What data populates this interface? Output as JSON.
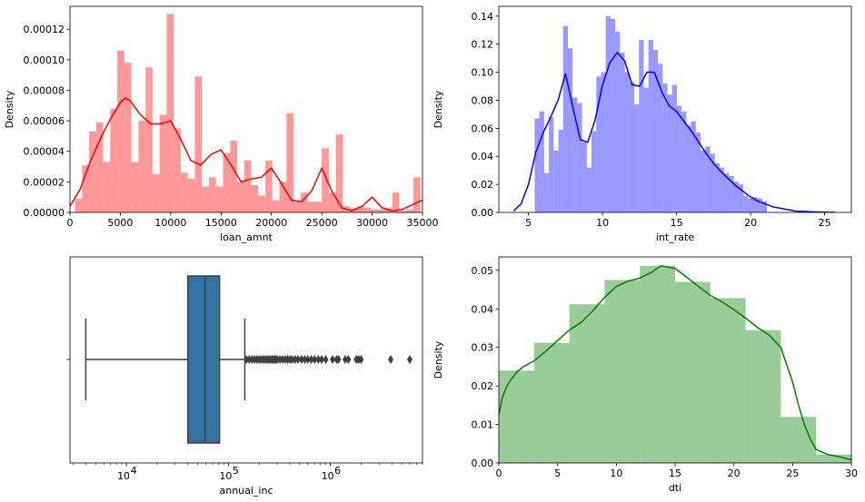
{
  "chart_data": [
    {
      "type": "histogram",
      "color": "#ff0000",
      "xlabel": "loan_amnt",
      "ylabel": "Density",
      "xlim": [
        0,
        35000
      ],
      "ylim": [
        0,
        0.000135
      ],
      "xticks": [
        0,
        5000,
        10000,
        15000,
        20000,
        25000,
        30000,
        35000
      ],
      "yticks": [
        0,
        2e-05,
        4e-05,
        6e-05,
        8e-05,
        0.0001,
        0.00012
      ],
      "xtick_labels": [
        "0",
        "5000",
        "10000",
        "15000",
        "20000",
        "25000",
        "30000",
        "35000"
      ],
      "ytick_labels": [
        "0.00000",
        "0.00002",
        "0.00004",
        "0.00006",
        "0.00008",
        "0.00010",
        "0.00012"
      ],
      "bin_start": 500,
      "bin_width": 700,
      "values": [
        9e-06,
        3.1e-05,
        5.3e-05,
        5.9e-05,
        3.3e-05,
        6.8e-05,
        0.000106,
        9.8e-05,
        3.3e-05,
        6e-05,
        9.5e-05,
        2.5e-05,
        6.4e-05,
        0.00013,
        5.5e-05,
        2.6e-05,
        2.2e-05,
        8.9e-05,
        1.7e-05,
        2.3e-05,
        1.7e-05,
        3.9e-05,
        4.7e-05,
        2e-05,
        3.4e-05,
        1.8e-05,
        1.1e-05,
        3.4e-05,
        8e-06,
        2e-05,
        6.5e-05,
        7e-06,
        1.3e-05,
        7e-06,
        7e-06,
        4.2e-05,
        1.3e-05,
        5.1e-05,
        4e-06,
        3e-06,
        4e-06,
        3e-06,
        2e-06,
        2e-06,
        3e-06,
        1.3e-05,
        1e-06,
        2e-06,
        2.3e-05
      ],
      "kde": {
        "x": [
          0,
          1000,
          2000,
          3000,
          4000,
          5000,
          5500,
          6000,
          7000,
          8000,
          9000,
          10000,
          11000,
          12000,
          13000,
          14000,
          15000,
          16000,
          17000,
          18000,
          19000,
          20000,
          21000,
          22000,
          23000,
          24000,
          25000,
          26000,
          27000,
          28000,
          29000,
          30000,
          31000,
          32000,
          33000,
          34000,
          35000
        ],
        "y": [
          4e-06,
          1.5e-05,
          3.3e-05,
          4.8e-05,
          6.1e-05,
          7.2e-05,
          7.5e-05,
          7.3e-05,
          6.4e-05,
          5.8e-05,
          5.8e-05,
          6e-05,
          4.8e-05,
          3.4e-05,
          3.1e-05,
          3.8e-05,
          4.1e-05,
          3.1e-05,
          2e-05,
          2.2e-05,
          2.3e-05,
          2.9e-05,
          1.9e-05,
          8e-06,
          7e-06,
          1.4e-05,
          2.9e-05,
          1.4e-05,
          3e-06,
          1e-06,
          4e-06,
          1e-05,
          3e-06,
          1e-06,
          2e-06,
          5e-06,
          8e-06
        ]
      }
    },
    {
      "type": "histogram",
      "color": "#0000ff",
      "xlabel": "int_rate",
      "ylabel": "Density",
      "xlim": [
        3.0,
        26.8
      ],
      "ylim": [
        0,
        0.147
      ],
      "xticks": [
        5,
        10,
        15,
        20,
        25
      ],
      "yticks": [
        0,
        0.02,
        0.04,
        0.06,
        0.08,
        0.1,
        0.12,
        0.14
      ],
      "xtick_labels": [
        "5",
        "10",
        "15",
        "20",
        "25"
      ],
      "ytick_labels": [
        "0.00",
        "0.02",
        "0.04",
        "0.06",
        "0.08",
        "0.10",
        "0.12",
        "0.14"
      ],
      "bin_start": 5.42,
      "bin_width": 0.32,
      "values": [
        0.067,
        0.072,
        0.028,
        0.068,
        0.044,
        0.059,
        0.133,
        0.117,
        0.082,
        0.078,
        0.05,
        0.032,
        0.058,
        0.097,
        0.1,
        0.14,
        0.138,
        0.129,
        0.114,
        0.1,
        0.093,
        0.077,
        0.123,
        0.089,
        0.123,
        0.116,
        0.106,
        0.092,
        0.084,
        0.091,
        0.076,
        0.072,
        0.062,
        0.065,
        0.057,
        0.044,
        0.047,
        0.042,
        0.035,
        0.032,
        0.028,
        0.026,
        0.022,
        0.02,
        0.012,
        0.01,
        0.011,
        0.01,
        0.008
      ],
      "kde": {
        "x": [
          4.0,
          4.5,
          5.0,
          5.5,
          6.0,
          6.5,
          7.0,
          7.5,
          8.0,
          8.5,
          9.0,
          9.5,
          10.0,
          10.5,
          11.0,
          11.5,
          12.0,
          12.5,
          13.0,
          13.5,
          14.0,
          14.5,
          15.0,
          15.5,
          16.0,
          16.5,
          17.0,
          17.5,
          18.0,
          18.5,
          19.0,
          19.5,
          20.0,
          20.5,
          21.0,
          21.5,
          22.0,
          23.0,
          24.0,
          25.0,
          25.7
        ],
        "y": [
          0.001,
          0.006,
          0.02,
          0.043,
          0.057,
          0.068,
          0.08,
          0.099,
          0.075,
          0.052,
          0.05,
          0.066,
          0.091,
          0.107,
          0.114,
          0.108,
          0.091,
          0.09,
          0.1,
          0.1,
          0.086,
          0.076,
          0.072,
          0.065,
          0.058,
          0.05,
          0.042,
          0.035,
          0.029,
          0.024,
          0.019,
          0.015,
          0.011,
          0.008,
          0.006,
          0.004,
          0.003,
          0.001,
          0.0005,
          0.0002,
          0.0001
        ]
      }
    },
    {
      "type": "boxplot",
      "color": "#3274a1",
      "xlabel": "annual_inc",
      "xscale": "log",
      "xlim": [
        2800,
        8000000
      ],
      "xticks": [
        10000,
        100000,
        1000000
      ],
      "xtick_labels": [
        "10",
        "10",
        "10"
      ],
      "xtick_exponents": [
        "4",
        "5",
        "6"
      ],
      "whisker_low": 4000,
      "q1": 40000,
      "median": 59000,
      "q3": 82000,
      "whisker_high": 145000,
      "outliers": [
        150000,
        160000,
        170000,
        180000,
        190000,
        200000,
        210000,
        220000,
        230000,
        240000,
        250000,
        260000,
        270000,
        280000,
        290000,
        300000,
        320000,
        340000,
        360000,
        380000,
        400000,
        420000,
        450000,
        480000,
        520000,
        560000,
        600000,
        650000,
        700000,
        760000,
        820000,
        900000,
        1050000,
        1150000,
        1200000,
        1400000,
        1500000,
        1800000,
        1900000,
        2000000,
        3900000,
        6000000
      ]
    },
    {
      "type": "histogram",
      "color": "#008000",
      "xlabel": "dti",
      "ylabel": "Density",
      "xlim": [
        0,
        30
      ],
      "ylim": [
        0,
        0.0535
      ],
      "xticks": [
        0,
        5,
        10,
        15,
        20,
        25,
        30
      ],
      "yticks": [
        0,
        0.01,
        0.02,
        0.03,
        0.04,
        0.05
      ],
      "xtick_labels": [
        "0",
        "5",
        "10",
        "15",
        "20",
        "25",
        "30"
      ],
      "ytick_labels": [
        "0.00",
        "0.01",
        "0.02",
        "0.03",
        "0.04",
        "0.05"
      ],
      "bin_start": 0,
      "bin_width": 3,
      "values": [
        0.024,
        0.0312,
        0.0412,
        0.0475,
        0.0512,
        0.047,
        0.0428,
        0.0345,
        0.012,
        0.0022
      ],
      "kde": {
        "x": [
          0,
          0.3,
          0.7,
          1,
          1.5,
          2,
          3,
          4,
          5,
          6,
          7,
          8,
          9,
          10,
          11,
          12,
          13,
          13.8,
          15,
          16,
          17,
          18,
          19,
          20,
          21,
          22,
          23,
          24,
          25,
          25.5,
          26,
          26.5,
          27,
          28,
          29,
          30
        ],
        "y": [
          0.0125,
          0.017,
          0.02,
          0.0215,
          0.0235,
          0.0248,
          0.0265,
          0.029,
          0.0318,
          0.0345,
          0.0365,
          0.0395,
          0.043,
          0.0458,
          0.0472,
          0.048,
          0.0495,
          0.0512,
          0.0505,
          0.0482,
          0.0458,
          0.0435,
          0.0418,
          0.0398,
          0.0376,
          0.0352,
          0.0332,
          0.03,
          0.021,
          0.015,
          0.01,
          0.0062,
          0.0035,
          0.0022,
          0.0016,
          0.0008
        ]
      }
    }
  ]
}
